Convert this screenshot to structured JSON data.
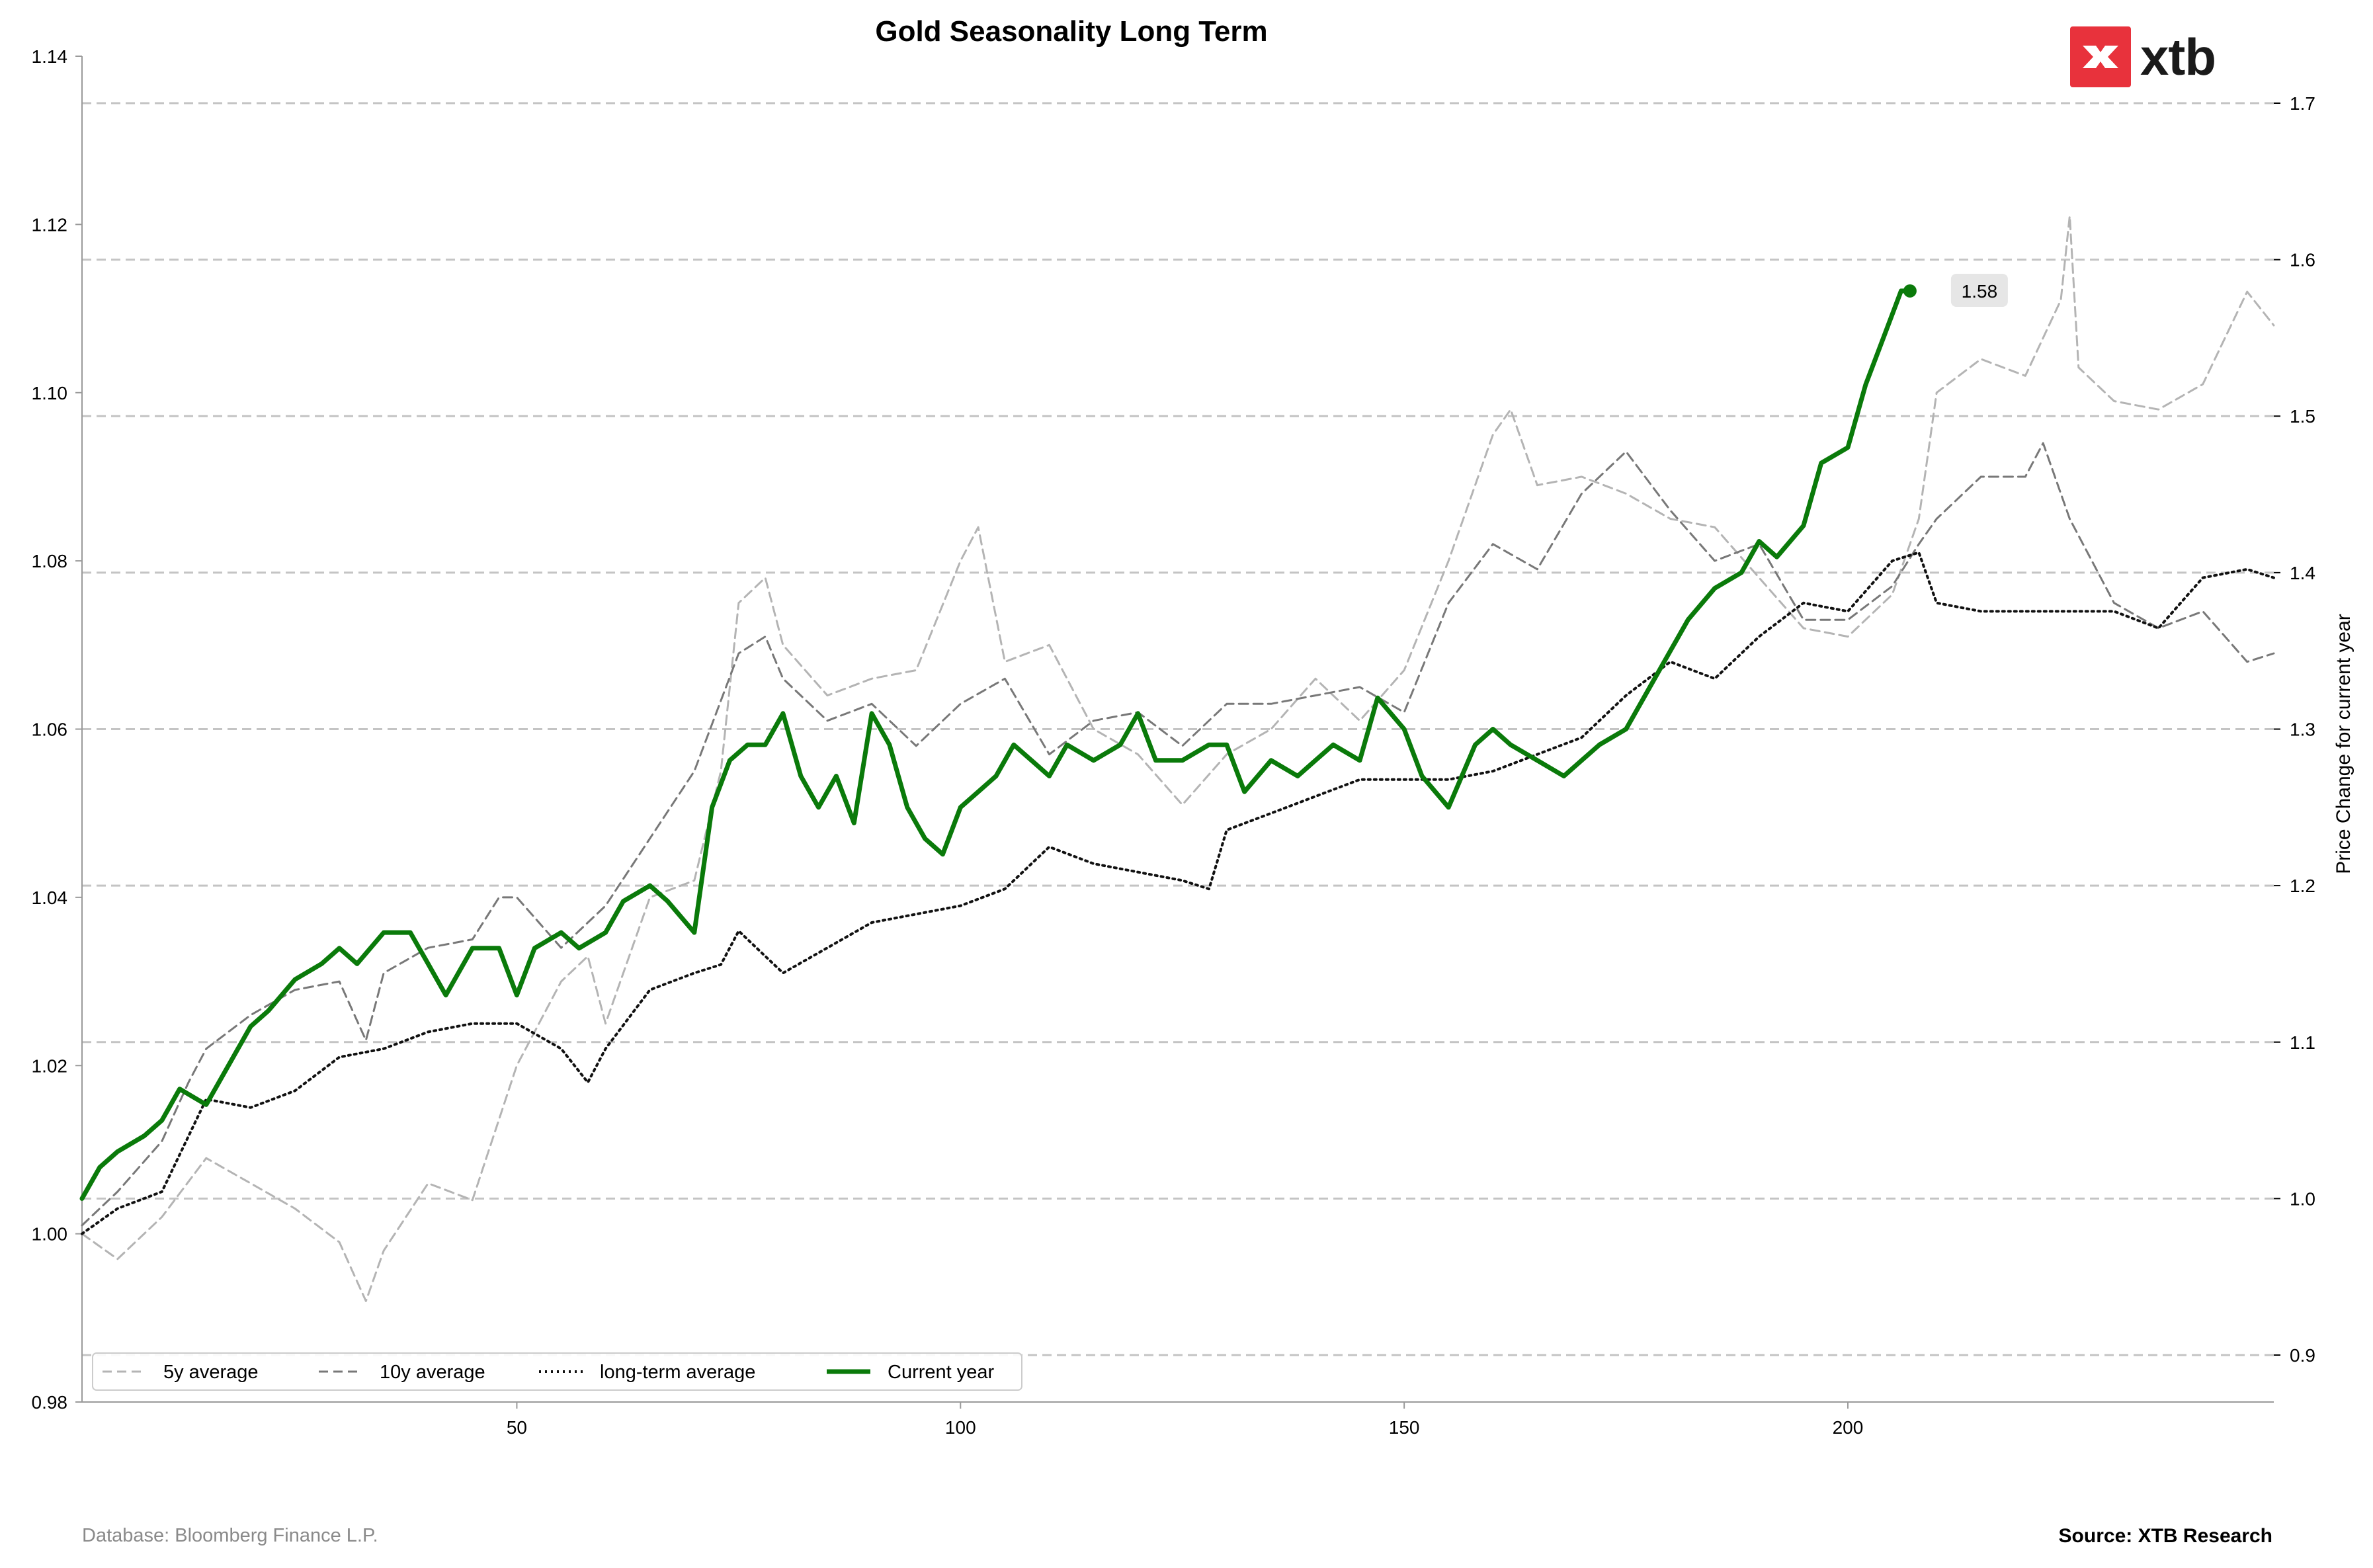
{
  "chart_data": {
    "type": "line",
    "title": "Gold Seasonality Long Term",
    "xlabel": "",
    "ylabel": "",
    "y2label": "Price Change for current year",
    "xlim": [
      1,
      248
    ],
    "ylim": [
      0.98,
      1.14
    ],
    "y2lim": [
      0.87,
      1.73
    ],
    "xticks": [
      50,
      100,
      150,
      200
    ],
    "yticks": [
      0.98,
      1.0,
      1.02,
      1.04,
      1.06,
      1.08,
      1.1,
      1.12,
      1.14
    ],
    "y2ticks": [
      0.9,
      1.0,
      1.1,
      1.2,
      1.3,
      1.4,
      1.5,
      1.6,
      1.7
    ],
    "ytick_labels": [
      "0.98",
      "1.00",
      "1.02",
      "1.04",
      "1.06",
      "1.08",
      "1.10",
      "1.12",
      "1.14"
    ],
    "y2tick_labels": [
      "0.9",
      "1.0",
      "1.1",
      "1.2",
      "1.3",
      "1.4",
      "1.5",
      "1.6",
      "1.7"
    ],
    "xtick_labels": [
      "50",
      "100",
      "150",
      "200"
    ],
    "grid": "horizontal dashed at right-axis ticks",
    "legend_position": "bottom-left",
    "end_label": "1.58",
    "series": [
      {
        "name": "5y average",
        "axis": "left",
        "color": "#b4b4b4",
        "style": "dashed",
        "x": [
          1,
          5,
          10,
          15,
          20,
          25,
          30,
          33,
          35,
          40,
          45,
          50,
          55,
          58,
          60,
          65,
          70,
          73,
          75,
          78,
          80,
          85,
          90,
          95,
          100,
          102,
          105,
          110,
          115,
          120,
          125,
          130,
          135,
          140,
          145,
          150,
          155,
          160,
          162,
          165,
          170,
          175,
          180,
          185,
          190,
          195,
          200,
          205,
          208,
          210,
          215,
          220,
          224,
          225,
          226,
          230,
          235,
          240,
          245,
          248
        ],
        "y": [
          1.0,
          0.997,
          1.002,
          1.009,
          1.006,
          1.003,
          0.999,
          0.992,
          0.998,
          1.006,
          1.004,
          1.02,
          1.03,
          1.033,
          1.025,
          1.04,
          1.042,
          1.055,
          1.075,
          1.078,
          1.07,
          1.064,
          1.066,
          1.067,
          1.08,
          1.084,
          1.068,
          1.07,
          1.06,
          1.057,
          1.051,
          1.057,
          1.06,
          1.066,
          1.061,
          1.067,
          1.08,
          1.095,
          1.098,
          1.089,
          1.09,
          1.088,
          1.085,
          1.084,
          1.078,
          1.072,
          1.071,
          1.076,
          1.085,
          1.1,
          1.104,
          1.102,
          1.111,
          1.121,
          1.103,
          1.099,
          1.098,
          1.101,
          1.112,
          1.108
        ]
      },
      {
        "name": "10y average",
        "axis": "left",
        "color": "#787878",
        "style": "dashed",
        "x": [
          1,
          5,
          10,
          13,
          15,
          20,
          25,
          30,
          33,
          35,
          40,
          45,
          48,
          50,
          55,
          60,
          65,
          70,
          75,
          78,
          80,
          85,
          90,
          95,
          100,
          105,
          110,
          115,
          120,
          125,
          130,
          135,
          140,
          145,
          150,
          155,
          160,
          165,
          170,
          175,
          180,
          185,
          190,
          195,
          200,
          205,
          208,
          210,
          215,
          220,
          222,
          225,
          230,
          235,
          240,
          245,
          248
        ],
        "y": [
          1.001,
          1.005,
          1.011,
          1.018,
          1.022,
          1.026,
          1.029,
          1.03,
          1.023,
          1.031,
          1.034,
          1.035,
          1.04,
          1.04,
          1.034,
          1.039,
          1.047,
          1.055,
          1.069,
          1.071,
          1.066,
          1.061,
          1.063,
          1.058,
          1.063,
          1.066,
          1.057,
          1.061,
          1.062,
          1.058,
          1.063,
          1.063,
          1.064,
          1.065,
          1.062,
          1.075,
          1.082,
          1.079,
          1.088,
          1.093,
          1.086,
          1.08,
          1.082,
          1.073,
          1.073,
          1.077,
          1.082,
          1.085,
          1.09,
          1.09,
          1.094,
          1.085,
          1.075,
          1.072,
          1.074,
          1.068,
          1.069
        ]
      },
      {
        "name": "long-term average",
        "axis": "left",
        "color": "#111111",
        "style": "dotted",
        "x": [
          1,
          5,
          10,
          15,
          20,
          25,
          30,
          35,
          40,
          45,
          50,
          55,
          58,
          60,
          65,
          70,
          73,
          75,
          78,
          80,
          85,
          90,
          95,
          100,
          105,
          110,
          115,
          120,
          125,
          128,
          130,
          135,
          140,
          145,
          150,
          155,
          160,
          165,
          170,
          175,
          180,
          185,
          190,
          195,
          200,
          205,
          208,
          210,
          215,
          220,
          225,
          230,
          235,
          240,
          245,
          248
        ],
        "y": [
          1.0,
          1.003,
          1.005,
          1.016,
          1.015,
          1.017,
          1.021,
          1.022,
          1.024,
          1.025,
          1.025,
          1.022,
          1.018,
          1.022,
          1.029,
          1.031,
          1.032,
          1.036,
          1.033,
          1.031,
          1.034,
          1.037,
          1.038,
          1.039,
          1.041,
          1.046,
          1.044,
          1.043,
          1.042,
          1.041,
          1.048,
          1.05,
          1.052,
          1.054,
          1.054,
          1.054,
          1.055,
          1.057,
          1.059,
          1.064,
          1.068,
          1.066,
          1.071,
          1.075,
          1.074,
          1.08,
          1.081,
          1.075,
          1.074,
          1.074,
          1.074,
          1.074,
          1.072,
          1.078,
          1.079,
          1.078
        ]
      },
      {
        "name": "Current year",
        "axis": "right",
        "color": "#0a7a0a",
        "style": "solid",
        "x": [
          1,
          3,
          5,
          8,
          10,
          12,
          15,
          18,
          20,
          22,
          25,
          28,
          30,
          32,
          35,
          38,
          40,
          42,
          45,
          48,
          50,
          52,
          55,
          57,
          60,
          62,
          65,
          67,
          70,
          72,
          74,
          76,
          78,
          80,
          82,
          84,
          86,
          88,
          90,
          92,
          94,
          96,
          98,
          100,
          102,
          104,
          106,
          108,
          110,
          112,
          115,
          118,
          120,
          122,
          125,
          128,
          130,
          132,
          135,
          138,
          140,
          142,
          145,
          147,
          150,
          152,
          155,
          158,
          160,
          162,
          165,
          168,
          170,
          172,
          175,
          178,
          180,
          182,
          185,
          188,
          190,
          192,
          195,
          197,
          200,
          202,
          204,
          206,
          207
        ],
        "y": [
          1.0,
          1.02,
          1.03,
          1.04,
          1.05,
          1.07,
          1.06,
          1.09,
          1.11,
          1.12,
          1.14,
          1.15,
          1.16,
          1.15,
          1.17,
          1.17,
          1.15,
          1.13,
          1.16,
          1.16,
          1.13,
          1.16,
          1.17,
          1.16,
          1.17,
          1.19,
          1.2,
          1.19,
          1.17,
          1.25,
          1.28,
          1.29,
          1.29,
          1.31,
          1.27,
          1.25,
          1.27,
          1.24,
          1.31,
          1.29,
          1.25,
          1.23,
          1.22,
          1.25,
          1.26,
          1.27,
          1.29,
          1.28,
          1.27,
          1.29,
          1.28,
          1.29,
          1.31,
          1.28,
          1.28,
          1.29,
          1.29,
          1.26,
          1.28,
          1.27,
          1.28,
          1.29,
          1.28,
          1.32,
          1.3,
          1.27,
          1.25,
          1.29,
          1.3,
          1.29,
          1.28,
          1.27,
          1.28,
          1.29,
          1.3,
          1.33,
          1.35,
          1.37,
          1.39,
          1.4,
          1.42,
          1.41,
          1.43,
          1.47,
          1.48,
          1.52,
          1.55,
          1.58,
          1.58
        ]
      }
    ]
  },
  "footer": {
    "left": "Database: Bloomberg Finance L.P.",
    "right": "Source: XTB Research"
  },
  "logo": {
    "text": "xtb",
    "color": "#e8323c"
  }
}
